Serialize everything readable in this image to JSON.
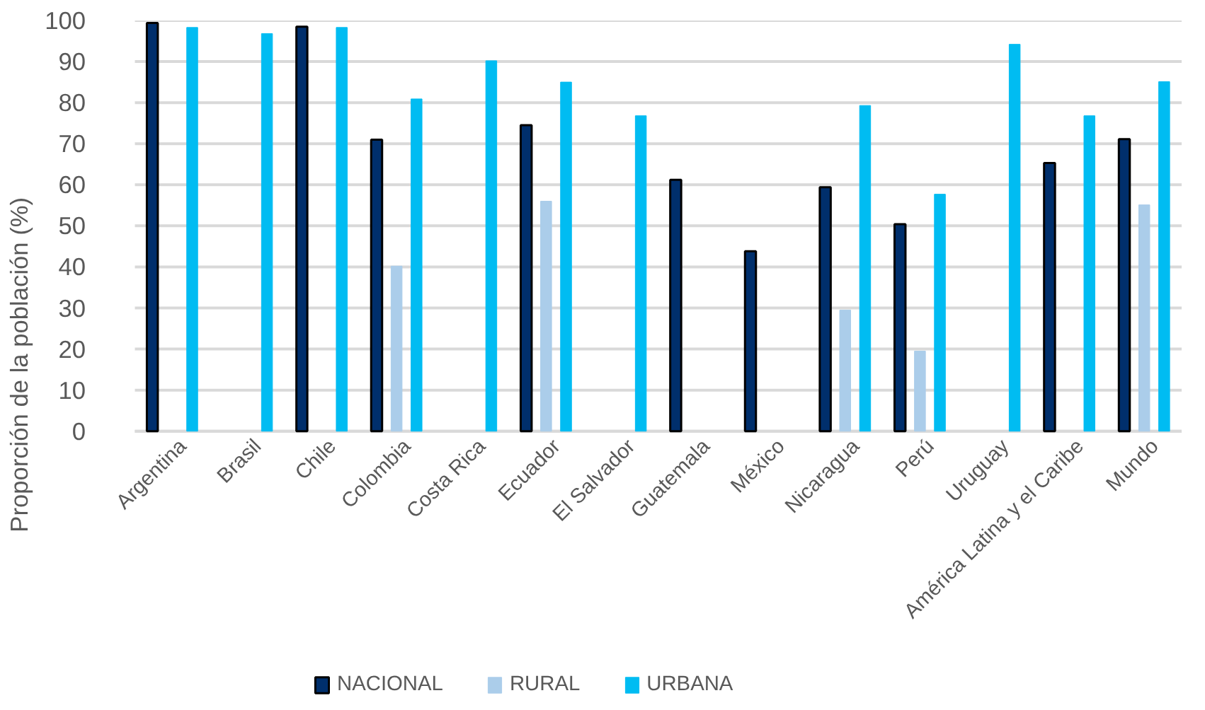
{
  "chart_data": {
    "type": "bar",
    "ylabel": "Proporción de la población  (%)",
    "categories": [
      "Argentina",
      "Brasil",
      "Chile",
      "Colombia",
      "Costa Rica",
      "Ecuador",
      "El Salvador",
      "Guatemala",
      "México",
      "Nicaragua",
      "Perú",
      "Uruguay",
      "América Latina y el Caribe",
      "Mundo"
    ],
    "series": [
      {
        "name": "NACIONAL",
        "color": "#002f6c",
        "values": [
          99.4,
          null,
          98.5,
          71,
          null,
          74.5,
          null,
          61.2,
          43.8,
          59.4,
          50.4,
          null,
          65.3,
          71.1
        ]
      },
      {
        "name": "RURAL",
        "color": "#abcdea",
        "values": [
          null,
          null,
          null,
          40.2,
          null,
          56,
          null,
          null,
          null,
          29.5,
          19.5,
          null,
          null,
          55.1
        ]
      },
      {
        "name": "URBANA",
        "color": "#00bcf2",
        "values": [
          98.3,
          96.8,
          98.3,
          80.9,
          90.2,
          85,
          76.8,
          null,
          null,
          79.3,
          57.7,
          94.2,
          76.8,
          85.1
        ]
      }
    ],
    "ylim": [
      0,
      100
    ],
    "yticks": [
      0,
      10,
      20,
      30,
      40,
      50,
      60,
      70,
      80,
      90,
      100
    ],
    "grid": "y",
    "legend": "bottom"
  }
}
